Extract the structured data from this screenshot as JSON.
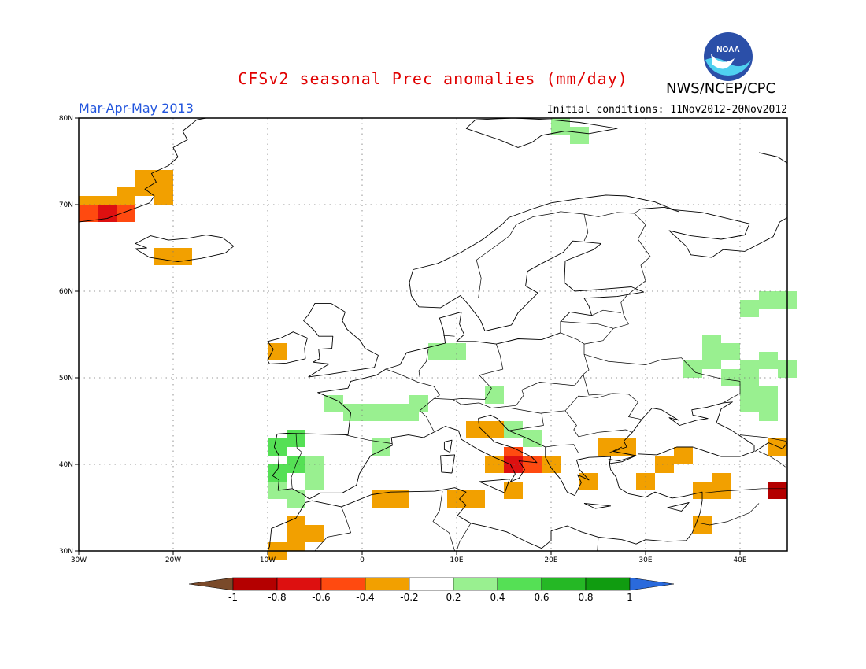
{
  "header": {
    "title": "CFSv2 seasonal Prec anomalies (mm/day)",
    "season": "Mar-Apr-May 2013",
    "initial_conditions": "Initial conditions: 11Nov2012-20Nov2012",
    "agency": "NWS/NCEP/CPC",
    "logo_text": "NOAA"
  },
  "map": {
    "region": "Europe",
    "lon_range": [
      -30,
      45
    ],
    "lat_range": [
      30,
      80
    ],
    "lon_ticks": [
      "30W",
      "20W",
      "10W",
      "0",
      "10E",
      "20E",
      "30E",
      "40E"
    ],
    "lat_ticks": [
      "30N",
      "40N",
      "50N",
      "60N",
      "70N",
      "80N"
    ],
    "grid_style": "dotted"
  },
  "colorbar": {
    "labels": [
      "-1",
      "-0.8",
      "-0.6",
      "-0.4",
      "-0.2",
      "0.2",
      "0.4",
      "0.6",
      "0.8",
      "1"
    ],
    "colors": [
      "#7a4a2a",
      "#b40000",
      "#dd1010",
      "#ff4a10",
      "#f2a000",
      "#ffffff",
      "#99f090",
      "#55e055",
      "#25b825",
      "#109c10",
      "#2a6adc"
    ]
  },
  "colors": {
    "title": "#e00000",
    "season": "#2255dd",
    "orange": "#f2a000",
    "dark_orange": "#ff4a10",
    "red": "#dd1010",
    "dark_red": "#b40000",
    "light_green": "#99f090",
    "green": "#55e055"
  }
}
